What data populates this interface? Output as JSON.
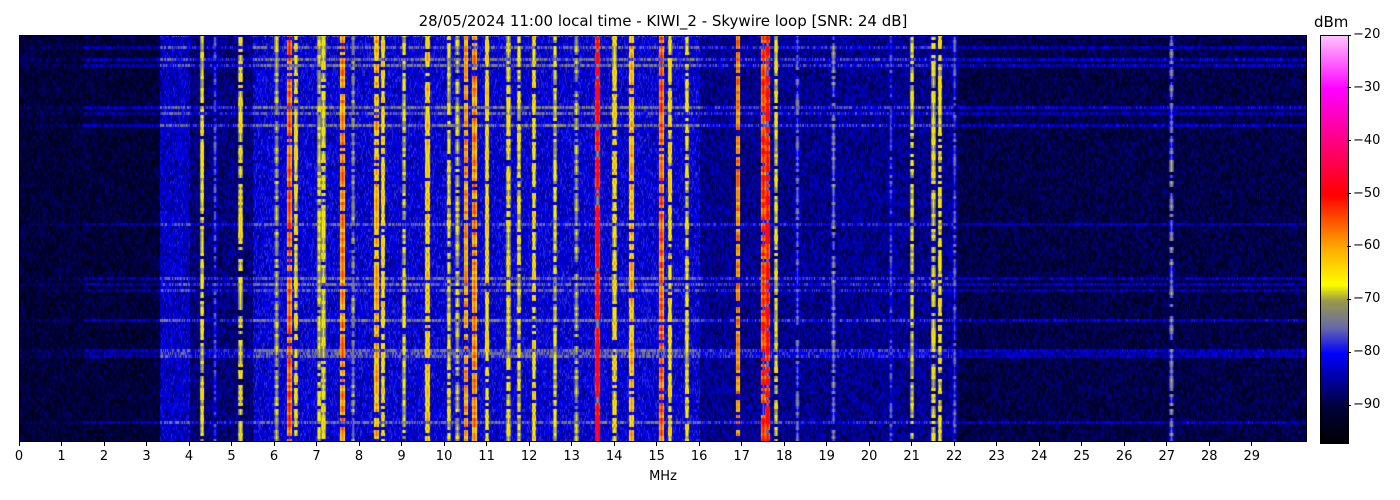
{
  "chart_data": {
    "type": "heatmap",
    "title": "28/05/2024 11:00 local time - KIWI_2 - Skywire loop [SNR: 24 dB]",
    "xlabel": "MHz",
    "ylabel": "",
    "xlim": [
      0,
      30.3
    ],
    "xticks": [
      "0",
      "1",
      "2",
      "3",
      "4",
      "5",
      "6",
      "7",
      "8",
      "9",
      "10",
      "11",
      "12",
      "13",
      "14",
      "15",
      "16",
      "17",
      "18",
      "19",
      "20",
      "21",
      "22",
      "23",
      "24",
      "25",
      "26",
      "27",
      "28",
      "29"
    ],
    "colorbar": {
      "label": "dBm",
      "range": [
        -97,
        -20
      ],
      "ticks": [
        "-20",
        "-30",
        "-40",
        "-50",
        "-60",
        "-70",
        "-80",
        "-90"
      ],
      "colormap": [
        {
          "dBm": -97,
          "color": "#000000"
        },
        {
          "dBm": -90,
          "color": "#00003c"
        },
        {
          "dBm": -80,
          "color": "#0000ff"
        },
        {
          "dBm": -75,
          "color": "#6a6aa8"
        },
        {
          "dBm": -70,
          "color": "#9a9a48"
        },
        {
          "dBm": -67,
          "color": "#ffff00"
        },
        {
          "dBm": -60,
          "color": "#ffaa00"
        },
        {
          "dBm": -50,
          "color": "#ff0000"
        },
        {
          "dBm": -40,
          "color": "#ff0080"
        },
        {
          "dBm": -30,
          "color": "#ff00ff"
        },
        {
          "dBm": -20,
          "color": "#ffc0ff"
        }
      ]
    },
    "noise_floor_bands": [
      {
        "from_mhz": 0,
        "to_mhz": 3.3,
        "dBm": -91
      },
      {
        "from_mhz": 3.3,
        "to_mhz": 4.0,
        "dBm": -83
      },
      {
        "from_mhz": 4.0,
        "to_mhz": 5.5,
        "dBm": -87
      },
      {
        "from_mhz": 5.5,
        "to_mhz": 16.0,
        "dBm": -82
      },
      {
        "from_mhz": 16.0,
        "to_mhz": 22.0,
        "dBm": -86
      },
      {
        "from_mhz": 22.0,
        "to_mhz": 30.3,
        "dBm": -90
      }
    ],
    "signals": [
      {
        "mhz": 4.3,
        "dBm": -65
      },
      {
        "mhz": 4.6,
        "dBm": -76
      },
      {
        "mhz": 5.2,
        "dBm": -64
      },
      {
        "mhz": 6.05,
        "dBm": -68
      },
      {
        "mhz": 6.35,
        "dBm": -52
      },
      {
        "mhz": 6.5,
        "dBm": -64
      },
      {
        "mhz": 7.05,
        "dBm": -66
      },
      {
        "mhz": 7.15,
        "dBm": -64
      },
      {
        "mhz": 7.6,
        "dBm": -55
      },
      {
        "mhz": 7.85,
        "dBm": -70
      },
      {
        "mhz": 8.4,
        "dBm": -58
      },
      {
        "mhz": 8.55,
        "dBm": -62
      },
      {
        "mhz": 9.05,
        "dBm": -66
      },
      {
        "mhz": 9.6,
        "dBm": -60
      },
      {
        "mhz": 10.1,
        "dBm": -65
      },
      {
        "mhz": 10.3,
        "dBm": -67
      },
      {
        "mhz": 10.5,
        "dBm": -56
      },
      {
        "mhz": 10.7,
        "dBm": -55
      },
      {
        "mhz": 11.0,
        "dBm": -62
      },
      {
        "mhz": 11.5,
        "dBm": -64
      },
      {
        "mhz": 11.75,
        "dBm": -65
      },
      {
        "mhz": 12.1,
        "dBm": -62
      },
      {
        "mhz": 12.6,
        "dBm": -66
      },
      {
        "mhz": 13.1,
        "dBm": -68
      },
      {
        "mhz": 13.6,
        "dBm": -45
      },
      {
        "mhz": 14.0,
        "dBm": -62
      },
      {
        "mhz": 14.4,
        "dBm": -58
      },
      {
        "mhz": 15.1,
        "dBm": -52
      },
      {
        "mhz": 15.3,
        "dBm": -63
      },
      {
        "mhz": 15.7,
        "dBm": -64
      },
      {
        "mhz": 16.9,
        "dBm": -55
      },
      {
        "mhz": 17.5,
        "dBm": -50
      },
      {
        "mhz": 17.6,
        "dBm": -47
      },
      {
        "mhz": 17.8,
        "dBm": -65
      },
      {
        "mhz": 18.3,
        "dBm": -74
      },
      {
        "mhz": 19.15,
        "dBm": -72
      },
      {
        "mhz": 20.5,
        "dBm": -76
      },
      {
        "mhz": 21.0,
        "dBm": -66
      },
      {
        "mhz": 21.5,
        "dBm": -65
      },
      {
        "mhz": 21.65,
        "dBm": -64
      },
      {
        "mhz": 22.0,
        "dBm": -75
      },
      {
        "mhz": 27.1,
        "dBm": -72
      }
    ]
  }
}
